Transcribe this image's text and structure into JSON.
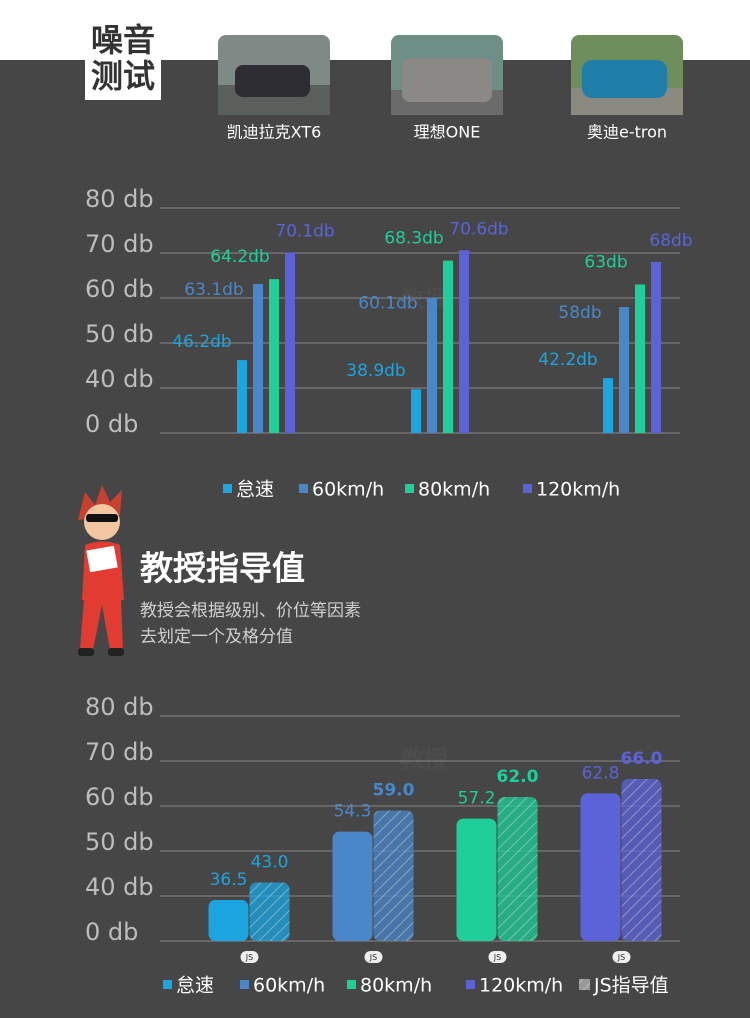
{
  "header": {
    "title_lines": [
      "噪音",
      "测试"
    ]
  },
  "watermark": "教授",
  "guide": {
    "title": "教授指导值",
    "lines": [
      "教授会根据级别、价位等因素",
      "去划定一个及格分值"
    ]
  },
  "chart_data": [
    {
      "type": "bar",
      "categories": [
        "凯迪拉克XT6",
        "理想ONE",
        "奥迪e-tron"
      ],
      "series": [
        {
          "name": "怠速",
          "color": "#1ba6e1",
          "values": [
            46.2,
            38.9,
            42.2
          ],
          "value_labels": [
            "46.2db",
            "38.9db",
            "42.2db"
          ]
        },
        {
          "name": "60km/h",
          "color": "#4a87c9",
          "values": [
            63.1,
            60.1,
            58
          ],
          "value_labels": [
            "63.1db",
            "60.1db",
            "58db"
          ]
        },
        {
          "name": "80km/h",
          "color": "#1ecf99",
          "values": [
            64.2,
            68.3,
            63
          ],
          "value_labels": [
            "64.2db",
            "68.3db",
            "63db"
          ]
        },
        {
          "name": "120km/h",
          "color": "#5c63d9",
          "values": [
            70.1,
            70.6,
            68
          ],
          "value_labels": [
            "70.1db",
            "70.6db",
            "68db"
          ]
        }
      ],
      "ylim": [
        0,
        80
      ],
      "yticks": [
        {
          "value": 0,
          "label": "0 db"
        },
        {
          "value": 40,
          "label": "40 db"
        },
        {
          "value": 50,
          "label": "50 db"
        },
        {
          "value": 60,
          "label": "60 db"
        },
        {
          "value": 70,
          "label": "70 db"
        },
        {
          "value": 80,
          "label": "80 db"
        }
      ],
      "grid": true,
      "legend": "bottom"
    },
    {
      "type": "paired_bar",
      "categories": [
        "怠速",
        "60km/h",
        "80km/h",
        "120km/h"
      ],
      "colors": [
        "#1ba6e1",
        "#4a87c9",
        "#1ecf99",
        "#5c63d9"
      ],
      "series": [
        {
          "values": [
            36.5,
            54.3,
            57.2,
            62.8
          ]
        },
        {
          "name": "JS指导值",
          "values": [
            43.0,
            59.0,
            62.0,
            66.0
          ],
          "value_labels": [
            "43.0",
            "59.0",
            "62.0",
            "66.0"
          ],
          "hatched": true
        }
      ],
      "badge": "JS",
      "ylim": [
        0,
        80
      ],
      "yticks": [
        {
          "value": 0,
          "label": "0 db"
        },
        {
          "value": 40,
          "label": "40 db"
        },
        {
          "value": 50,
          "label": "50 db"
        },
        {
          "value": 60,
          "label": "60 db"
        },
        {
          "value": 70,
          "label": "70 db"
        },
        {
          "value": 80,
          "label": "80 db"
        }
      ],
      "grid": true,
      "legend": "bottom"
    }
  ]
}
